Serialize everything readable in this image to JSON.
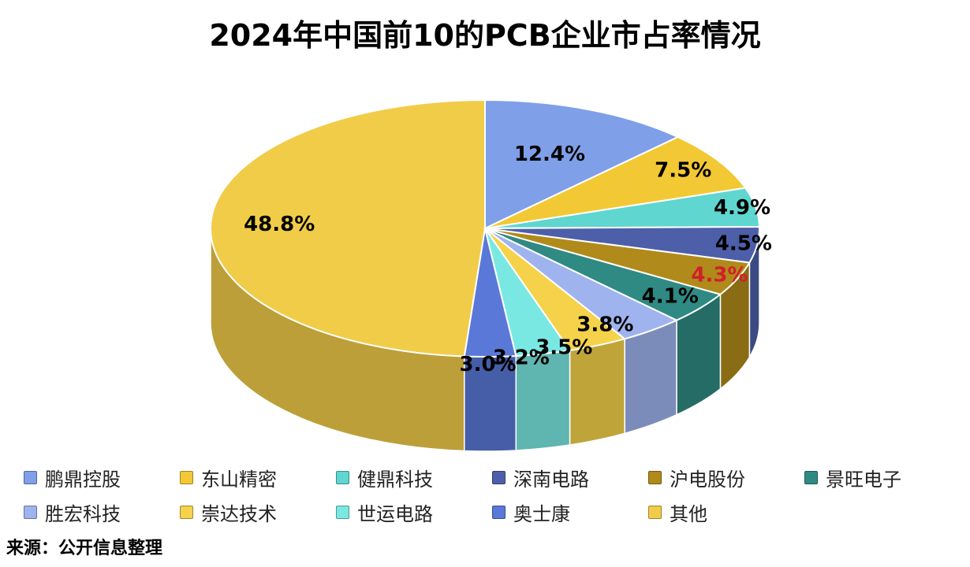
{
  "chart_data": {
    "type": "pie",
    "title": "2024年中国前10的PCB企业市占率情况",
    "slices": [
      {
        "name": "鹏鼎控股",
        "value": 12.4,
        "label": "12.4%",
        "color": "#7f9fe8",
        "label_color": "#000000"
      },
      {
        "name": "东山精密",
        "value": 7.5,
        "label": "7.5%",
        "color": "#f2c934",
        "label_color": "#000000"
      },
      {
        "name": "健鼎科技",
        "value": 4.9,
        "label": "4.9%",
        "color": "#5fd6d0",
        "label_color": "#000000"
      },
      {
        "name": "深南电路",
        "value": 4.5,
        "label": "4.5%",
        "color": "#4d5fa8",
        "label_color": "#000000"
      },
      {
        "name": "沪电股份",
        "value": 4.3,
        "label": "4.3%",
        "color": "#b08a1a",
        "label_color": "#d0202a"
      },
      {
        "name": "景旺电子",
        "value": 4.1,
        "label": "4.1%",
        "color": "#2f8a83",
        "label_color": "#000000"
      },
      {
        "name": "胜宏科技",
        "value": 3.8,
        "label": "3.8%",
        "color": "#9fb3ee",
        "label_color": "#000000"
      },
      {
        "name": "崇达技术",
        "value": 3.5,
        "label": "3.5%",
        "color": "#f5d24a",
        "label_color": "#000000"
      },
      {
        "name": "世运电路",
        "value": 3.2,
        "label": "3.2%",
        "color": "#7ae8e2",
        "label_color": "#000000"
      },
      {
        "name": "奥士康",
        "value": 3.0,
        "label": "3.0%",
        "color": "#5a78d8",
        "label_color": "#000000"
      },
      {
        "name": "其他",
        "value": 48.8,
        "label": "48.8%",
        "color": "#f1cc49",
        "label_color": "#000000"
      }
    ],
    "legend": {
      "position": "bottom",
      "rows": [
        [
          "鹏鼎控股",
          "东山精密",
          "健鼎科技",
          "深南电路",
          "沪电股份",
          "景旺电子"
        ],
        [
          "胜宏科技",
          "崇达技术",
          "世运电路",
          "奥士康",
          "其他"
        ]
      ]
    }
  },
  "source_note": "来源：公开信息整理"
}
